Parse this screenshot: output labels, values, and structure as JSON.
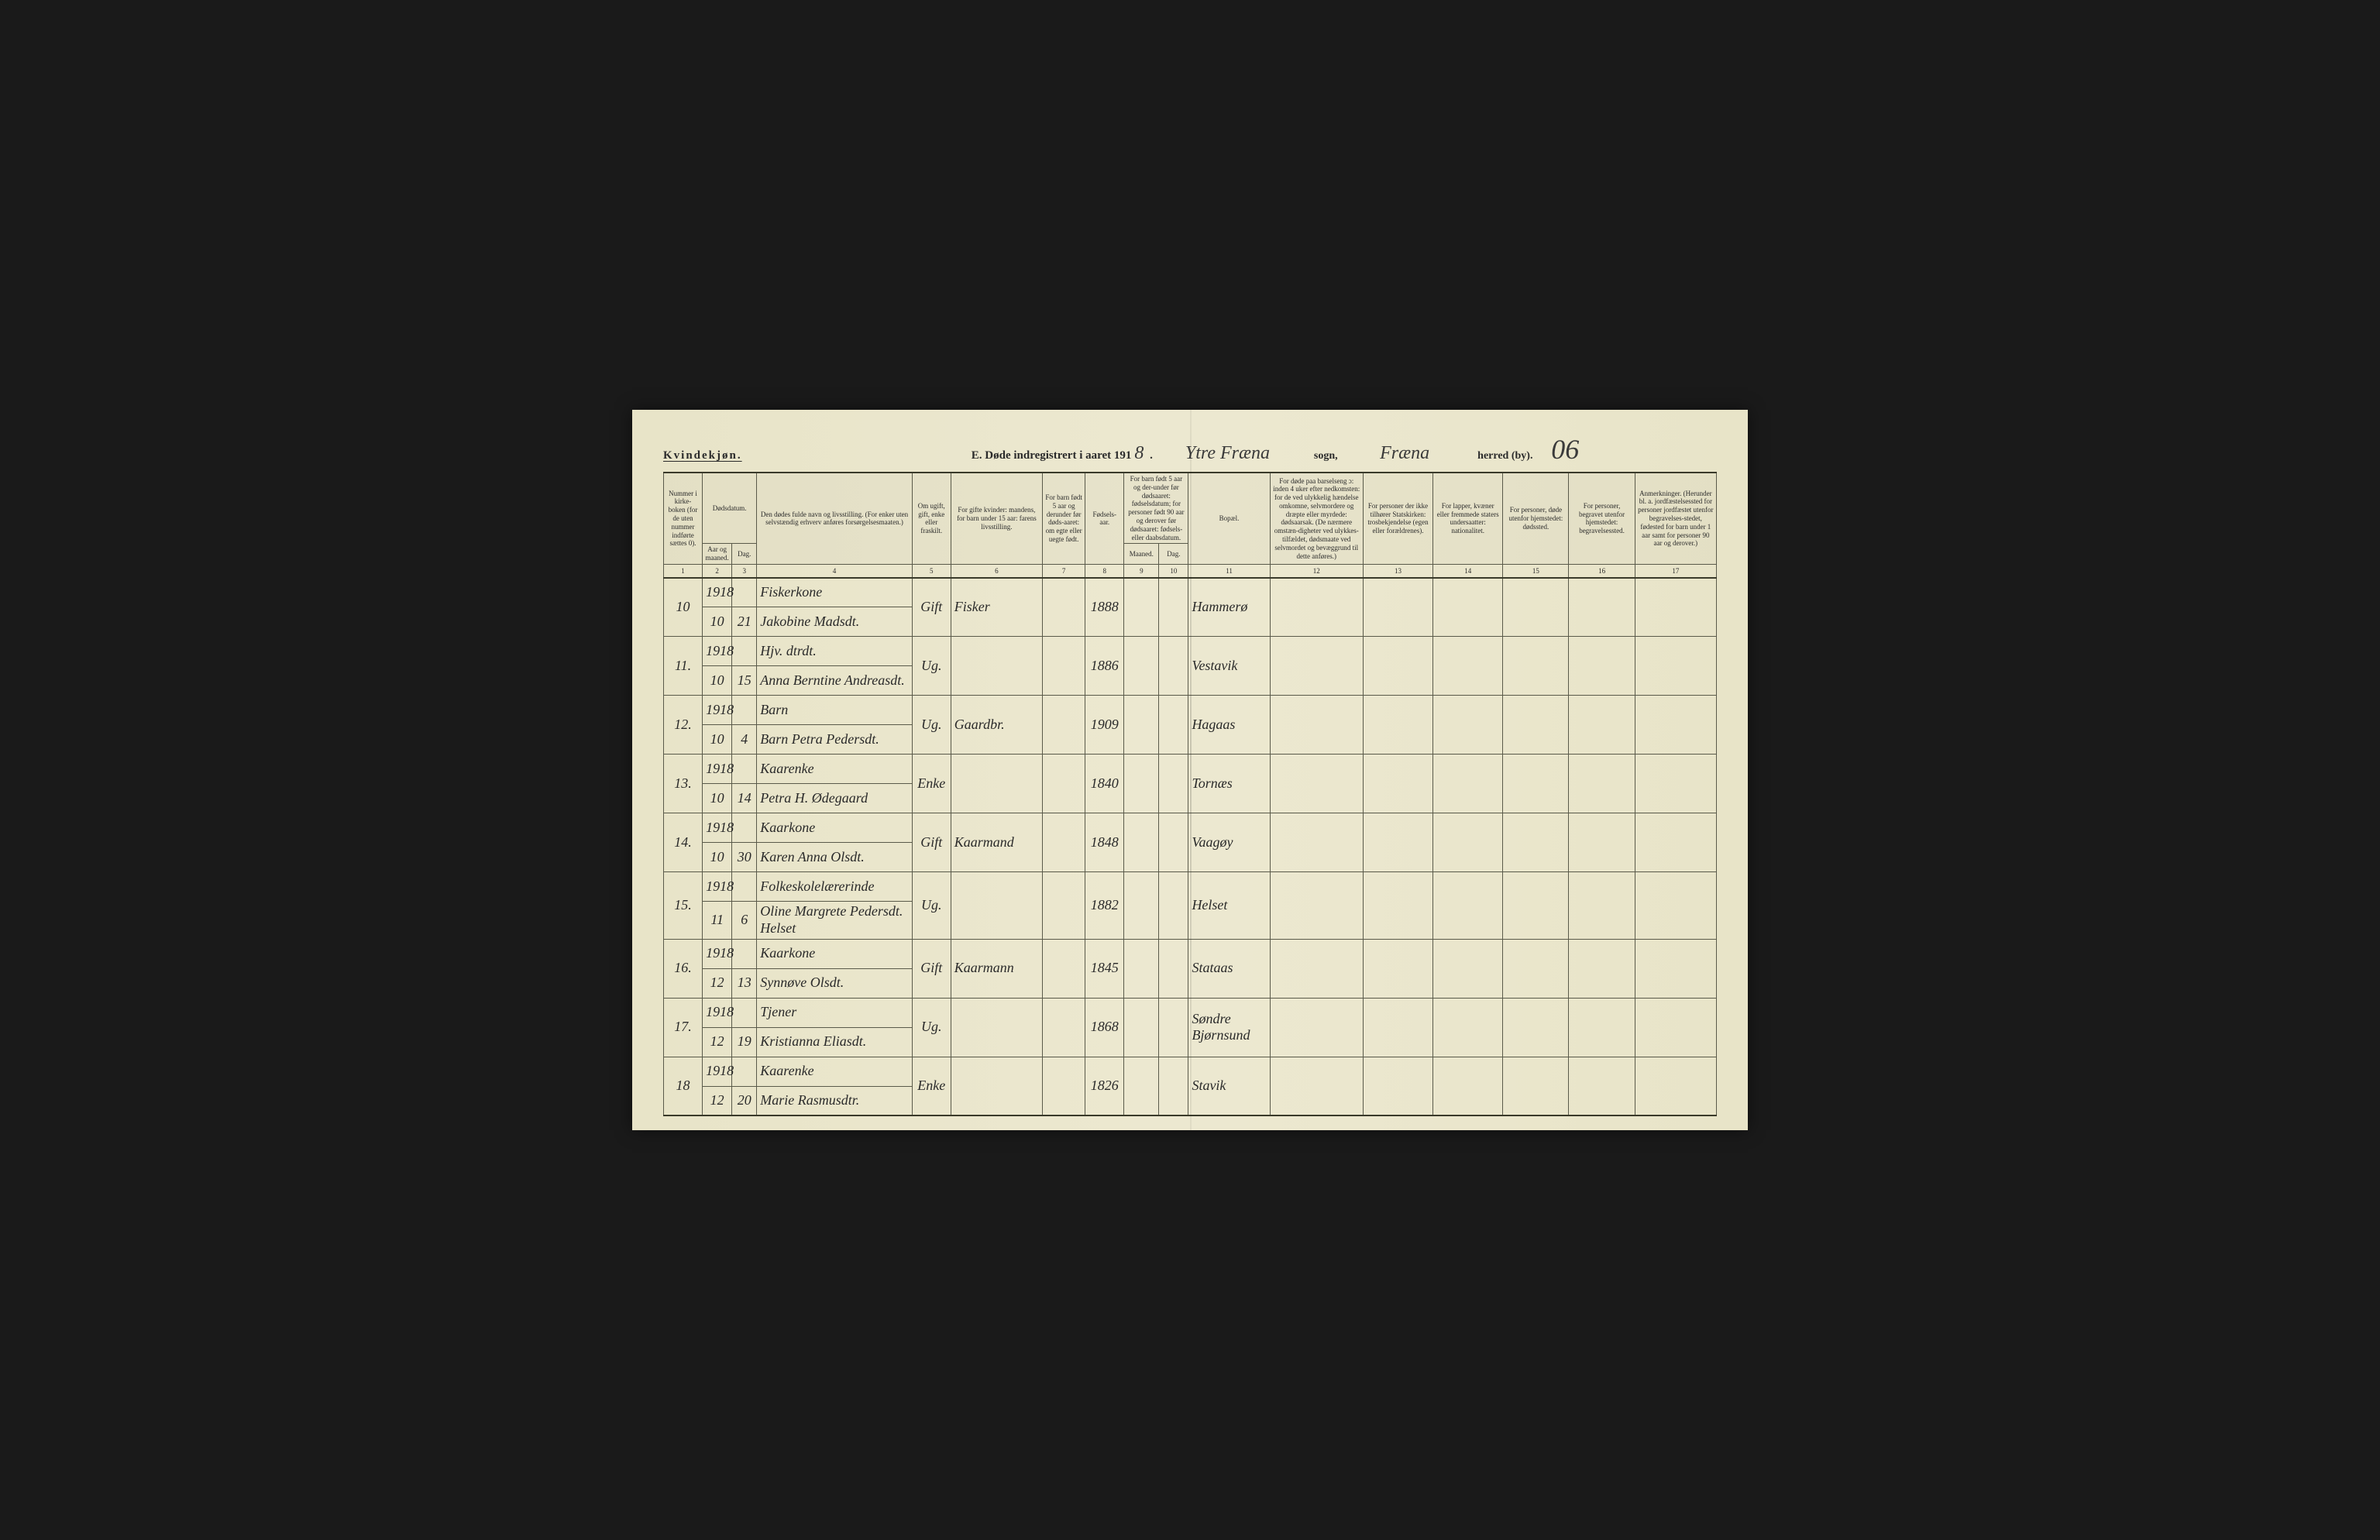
{
  "header": {
    "gender": "Kvindekjøn.",
    "title_prefix": "E.  Døde indregistrert i aaret 191",
    "year_suffix": "8",
    "sogn_value": "Ytre Fræna",
    "sogn_label": "sogn,",
    "herred_value": "Fræna",
    "herred_label": "herred (by).",
    "page_number": "06"
  },
  "columns": {
    "c1": "Nummer i kirke-boken (for de uten nummer indførte sættes 0).",
    "c2_3_top": "Dødsdatum.",
    "c2": "Aar og maaned.",
    "c3": "Dag.",
    "c4": "Den dødes fulde navn og livsstilling. (For enker uten selvstændig erhverv anføres forsørgelsesmaaten.)",
    "c5": "Om ugift, gift, enke eller fraskilt.",
    "c6": "For gifte kvinder: mandens, for barn under 15 aar: farens livsstilling.",
    "c7": "For barn født 5 aar og derunder før døds-aaret: om egte eller uegte født.",
    "c8": "Fødsels-aar.",
    "c9_10": "For barn født 5 aar og der-under før dødsaaret: fødselsdatum; for personer født 90 aar og derover før dødsaaret: fødsels- eller daabsdatum.",
    "c9": "Maaned.",
    "c10": "Dag.",
    "c11": "Bopæl.",
    "c12": "For døde paa barselseng ɔ: inden 4 uker efter nedkomsten: for de ved ulykkelig hændelse omkomne, selvmordere og dræpte eller myrdede: dødsaarsak. (De nærmere omstæn-digheter ved ulykkes-tilfældet, dødsmaate ved selvmordet og bevæggrund til dette anføres.)",
    "c13": "For personer der ikke tilhører Statskirken: trosbekjendelse (egen eller forældrenes).",
    "c14": "For lapper, kvæner eller fremmede staters undersaatter: nationalitet.",
    "c15": "For personer, døde utenfor hjemstedet: dødssted.",
    "c16": "For personer, begravet utenfor hjemstedet: begravelsessted.",
    "c17": "Anmerkninger. (Herunder bl. a. jordfæstelsessted for personer jordfæstet utenfor begravelses-stedet, fødested for barn under 1 aar samt for personer 90 aar og derover.)"
  },
  "colnums": [
    "1",
    "2",
    "3",
    "4",
    "5",
    "6",
    "7",
    "8",
    "9",
    "10",
    "11",
    "12",
    "13",
    "14",
    "15",
    "16",
    "17"
  ],
  "rows": [
    {
      "num": "10",
      "year": "1918",
      "month": "10",
      "day": "21",
      "occ": "Fiskerkone",
      "name": "Jakobine Madsdt.",
      "status": "Gift",
      "spouse": "Fisker",
      "birth": "1888",
      "place": "Hammerø"
    },
    {
      "num": "11.",
      "year": "1918",
      "month": "10",
      "day": "15",
      "occ": "Hjv. dtrdt.",
      "name": "Anna Berntine Andreasdt.",
      "status": "Ug.",
      "spouse": "",
      "birth": "1886",
      "place": "Vestavik"
    },
    {
      "num": "12.",
      "year": "1918",
      "month": "10",
      "day": "4",
      "occ": "Barn",
      "name": "Barn Petra Pedersdt.",
      "status": "Ug.",
      "spouse": "Gaardbr.",
      "birth": "1909",
      "place": "Hagaas"
    },
    {
      "num": "13.",
      "year": "1918",
      "month": "10",
      "day": "14",
      "occ": "Kaarenke",
      "name": "Petra H. Ødegaard",
      "status": "Enke",
      "spouse": "",
      "birth": "1840",
      "place": "Tornæs"
    },
    {
      "num": "14.",
      "year": "1918",
      "month": "10",
      "day": "30",
      "occ": "Kaarkone",
      "name": "Karen Anna Olsdt.",
      "status": "Gift",
      "spouse": "Kaarmand",
      "birth": "1848",
      "place": "Vaagøy"
    },
    {
      "num": "15.",
      "year": "1918",
      "month": "11",
      "day": "6",
      "occ": "Folkeskolelærerinde",
      "name": "Oline Margrete Pedersdt. Helset",
      "status": "Ug.",
      "spouse": "",
      "birth": "1882",
      "place": "Helset"
    },
    {
      "num": "16.",
      "year": "1918",
      "month": "12",
      "day": "13",
      "occ": "Kaarkone",
      "name": "Synnøve Olsdt.",
      "status": "Gift",
      "spouse": "Kaarmann",
      "birth": "1845",
      "place": "Stataas"
    },
    {
      "num": "17.",
      "year": "1918",
      "month": "12",
      "day": "19",
      "occ": "Tjener",
      "name": "Kristianna Eliasdt.",
      "status": "Ug.",
      "spouse": "",
      "birth": "1868",
      "place": "Søndre Bjørnsund"
    },
    {
      "num": "18",
      "year": "1918",
      "month": "12",
      "day": "20",
      "occ": "Kaarenke",
      "name": "Marie Rasmusdtr.",
      "status": "Enke",
      "spouse": "",
      "birth": "1826",
      "place": "Stavik"
    }
  ],
  "style": {
    "paper_color": "#e8e4c8",
    "ink_color": "#2a2a2a",
    "border_color": "#5a5a4a",
    "handwriting_color": "#3a3a3a"
  }
}
